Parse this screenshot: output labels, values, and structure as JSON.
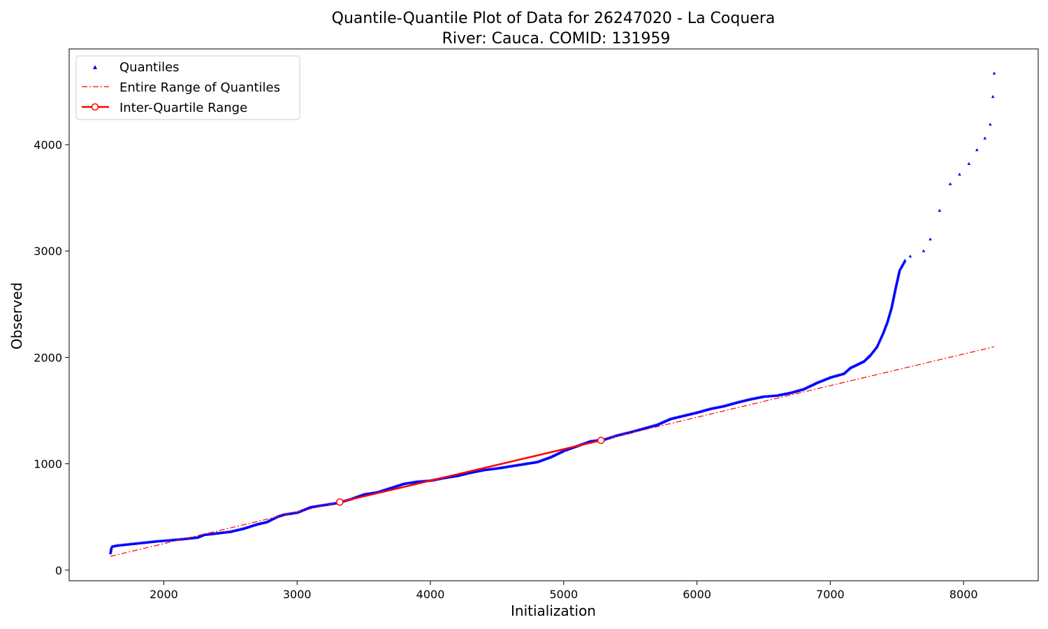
{
  "chart_data": {
    "type": "scatter",
    "title_line1": "Quantile-Quantile Plot of Data for 26247020 - La Coquera",
    "title_line2": "River: Cauca. COMID: 131959",
    "xlabel": "Initialization",
    "ylabel": "Observed",
    "xlim": [
      1290,
      8560
    ],
    "ylim": [
      -100,
      4900
    ],
    "xticks": [
      2000,
      3000,
      4000,
      5000,
      6000,
      7000,
      8000
    ],
    "xtick_labels": [
      "2000",
      "3000",
      "4000",
      "5000",
      "6000",
      "7000",
      "8000"
    ],
    "yticks": [
      0,
      1000,
      2000,
      3000,
      4000
    ],
    "ytick_labels": [
      "0",
      "1000",
      "2000",
      "3000",
      "4000"
    ],
    "grid": false,
    "legend_position": "top-left",
    "legend": [
      "Quantiles",
      "Entire Range of Quantiles",
      "Inter-Quartile Range"
    ],
    "colors": {
      "quantiles": "#0000ff",
      "entire": "#ff0000",
      "iqr": "#ff0000"
    },
    "series": [
      {
        "name": "Quantiles",
        "style": "markers",
        "anchors": [
          [
            1600,
            160
          ],
          [
            1605,
            200
          ],
          [
            1610,
            220
          ],
          [
            1650,
            230
          ],
          [
            1800,
            250
          ],
          [
            1950,
            270
          ],
          [
            2100,
            285
          ],
          [
            2250,
            305
          ],
          [
            2300,
            330
          ],
          [
            2400,
            345
          ],
          [
            2500,
            360
          ],
          [
            2600,
            390
          ],
          [
            2700,
            430
          ],
          [
            2770,
            450
          ],
          [
            2850,
            500
          ],
          [
            2900,
            520
          ],
          [
            3000,
            540
          ],
          [
            3100,
            590
          ],
          [
            3200,
            610
          ],
          [
            3300,
            630
          ],
          [
            3400,
            665
          ],
          [
            3500,
            710
          ],
          [
            3600,
            730
          ],
          [
            3700,
            770
          ],
          [
            3800,
            810
          ],
          [
            3900,
            830
          ],
          [
            4000,
            840
          ],
          [
            4100,
            865
          ],
          [
            4200,
            885
          ],
          [
            4300,
            915
          ],
          [
            4400,
            940
          ],
          [
            4500,
            955
          ],
          [
            4600,
            975
          ],
          [
            4700,
            995
          ],
          [
            4800,
            1015
          ],
          [
            4900,
            1060
          ],
          [
            5000,
            1120
          ],
          [
            5100,
            1165
          ],
          [
            5200,
            1210
          ],
          [
            5300,
            1225
          ],
          [
            5400,
            1265
          ],
          [
            5500,
            1295
          ],
          [
            5600,
            1330
          ],
          [
            5700,
            1365
          ],
          [
            5800,
            1420
          ],
          [
            5900,
            1450
          ],
          [
            6000,
            1480
          ],
          [
            6100,
            1515
          ],
          [
            6200,
            1540
          ],
          [
            6300,
            1575
          ],
          [
            6400,
            1605
          ],
          [
            6500,
            1630
          ],
          [
            6600,
            1640
          ],
          [
            6700,
            1665
          ],
          [
            6800,
            1700
          ],
          [
            6900,
            1760
          ],
          [
            7000,
            1810
          ],
          [
            7100,
            1845
          ],
          [
            7150,
            1900
          ],
          [
            7200,
            1930
          ],
          [
            7250,
            1960
          ],
          [
            7300,
            2020
          ],
          [
            7350,
            2100
          ],
          [
            7400,
            2240
          ],
          [
            7430,
            2340
          ],
          [
            7460,
            2470
          ],
          [
            7490,
            2650
          ],
          [
            7520,
            2820
          ],
          [
            7560,
            2910
          ]
        ],
        "points": [
          [
            7600,
            2950
          ],
          [
            7700,
            3000
          ],
          [
            7750,
            3110
          ],
          [
            7820,
            3380
          ],
          [
            7900,
            3630
          ],
          [
            7970,
            3720
          ],
          [
            8040,
            3820
          ],
          [
            8100,
            3950
          ],
          [
            8160,
            4060
          ],
          [
            8200,
            4190
          ],
          [
            8220,
            4450
          ],
          [
            8230,
            4670
          ]
        ]
      },
      {
        "name": "Entire Range of Quantiles",
        "style": "dashdot",
        "x": [
          1600,
          8230
        ],
        "y": [
          130,
          2100
        ]
      },
      {
        "name": "Inter-Quartile Range",
        "style": "line-markers",
        "x": [
          3320,
          5280
        ],
        "y": [
          640,
          1220
        ]
      }
    ]
  }
}
